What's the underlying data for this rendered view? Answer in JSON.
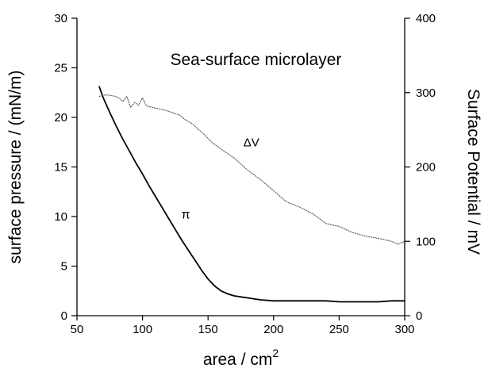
{
  "chart_data": {
    "type": "line",
    "title": "Sea-surface microlayer",
    "xlabel": "area / cm",
    "xlabel_superscript": "2",
    "ylabel_left": "surface pressure / (mN/m)",
    "ylabel_right": "Surface Potential / mV",
    "xlim": [
      50,
      300
    ],
    "ylim_left": [
      0,
      30
    ],
    "ylim_right": [
      0,
      400
    ],
    "x_ticks": [
      "50",
      "100",
      "150",
      "200",
      "250",
      "300"
    ],
    "y_left_ticks": [
      "0",
      "5",
      "10",
      "15",
      "20",
      "25",
      "30"
    ],
    "y_right_ticks": [
      "0",
      "100",
      "200",
      "300",
      "400"
    ],
    "grid": false,
    "series": [
      {
        "name": "π",
        "axis": "left",
        "style": "solid",
        "color": "#000000",
        "x": [
          67,
          70,
          75,
          80,
          85,
          90,
          95,
          100,
          105,
          110,
          115,
          120,
          125,
          130,
          135,
          140,
          145,
          150,
          155,
          160,
          165,
          170,
          175,
          180,
          190,
          200,
          210,
          220,
          230,
          240,
          250,
          260,
          270,
          280,
          290,
          300
        ],
        "y": [
          23.1,
          22.0,
          20.5,
          19.1,
          17.8,
          16.6,
          15.4,
          14.3,
          13.1,
          12.0,
          10.9,
          9.8,
          8.7,
          7.6,
          6.6,
          5.6,
          4.6,
          3.7,
          3.0,
          2.5,
          2.2,
          2.0,
          1.9,
          1.8,
          1.6,
          1.5,
          1.5,
          1.5,
          1.5,
          1.5,
          1.4,
          1.4,
          1.4,
          1.4,
          1.5,
          1.5
        ]
      },
      {
        "name": "ΔV",
        "axis": "right",
        "style": "dotted",
        "color": "#666666",
        "x": [
          67,
          72,
          77,
          82,
          85,
          88,
          91,
          94,
          97,
          100,
          103,
          108,
          113,
          118,
          123,
          128,
          133,
          138,
          143,
          148,
          153,
          160,
          170,
          180,
          190,
          200,
          210,
          220,
          230,
          240,
          250,
          260,
          270,
          280,
          290,
          295,
          300
        ],
        "y": [
          295,
          297,
          296,
          293,
          288,
          295,
          280,
          287,
          283,
          293,
          282,
          280,
          278,
          276,
          273,
          270,
          263,
          258,
          250,
          242,
          233,
          224,
          212,
          196,
          183,
          168,
          153,
          146,
          137,
          124,
          120,
          112,
          107,
          104,
          100,
          96,
          100
        ]
      }
    ],
    "annotations": [
      {
        "text": "Sea-surface microlayer",
        "x": 155,
        "y_left": 25.3
      },
      {
        "text": "ΔV",
        "x": 183,
        "y_left": 17.1
      },
      {
        "text": "π",
        "x": 133,
        "y_left": 9.8
      }
    ]
  }
}
